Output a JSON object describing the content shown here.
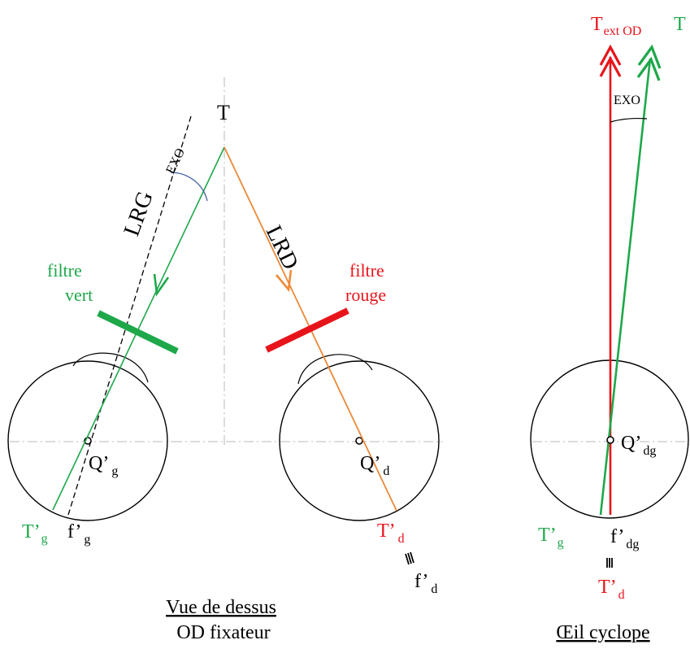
{
  "labels": {
    "target": "T",
    "lrg": "LRG",
    "lrd": "LRD",
    "exo_left": "EXO",
    "exo_right": "EXO",
    "green_filter": {
      "line1": "filtre",
      "line2": "vert"
    },
    "red_filter": {
      "line1": "filtre",
      "line2": "rouge"
    },
    "q_left": {
      "main": "Q’",
      "sub": "g"
    },
    "q_right": {
      "main": "Q’",
      "sub": "d"
    },
    "t_left": {
      "main": "T’",
      "sub": "g"
    },
    "f_left": {
      "main": "f’",
      "sub": "g"
    },
    "t_right": {
      "main": "T’",
      "sub": "d"
    },
    "f_right": {
      "main": "f’",
      "sub": "d"
    },
    "t_ext_od": {
      "main": "T",
      "sub": "ext OD"
    },
    "t_green_top": "T",
    "q_cyclope": {
      "main": "Q’",
      "sub": "dg"
    },
    "t_cyclope_green": {
      "main": "T’",
      "sub": "g"
    },
    "f_cyclope": {
      "main": "f’",
      "sub": "dg"
    },
    "t_cyclope_red": {
      "main": "T’",
      "sub": "d"
    },
    "caption_left": {
      "line1": "Vue de dessus",
      "line2": "OD fixateur"
    },
    "caption_right": "Œil cyclope"
  },
  "colors": {
    "green": "#1ea84a",
    "red": "#e8141b",
    "orange": "#ee8a3a",
    "blue_arc": "#3f5e9e",
    "black": "#000000",
    "guide_gray": "#b9b9b9"
  }
}
